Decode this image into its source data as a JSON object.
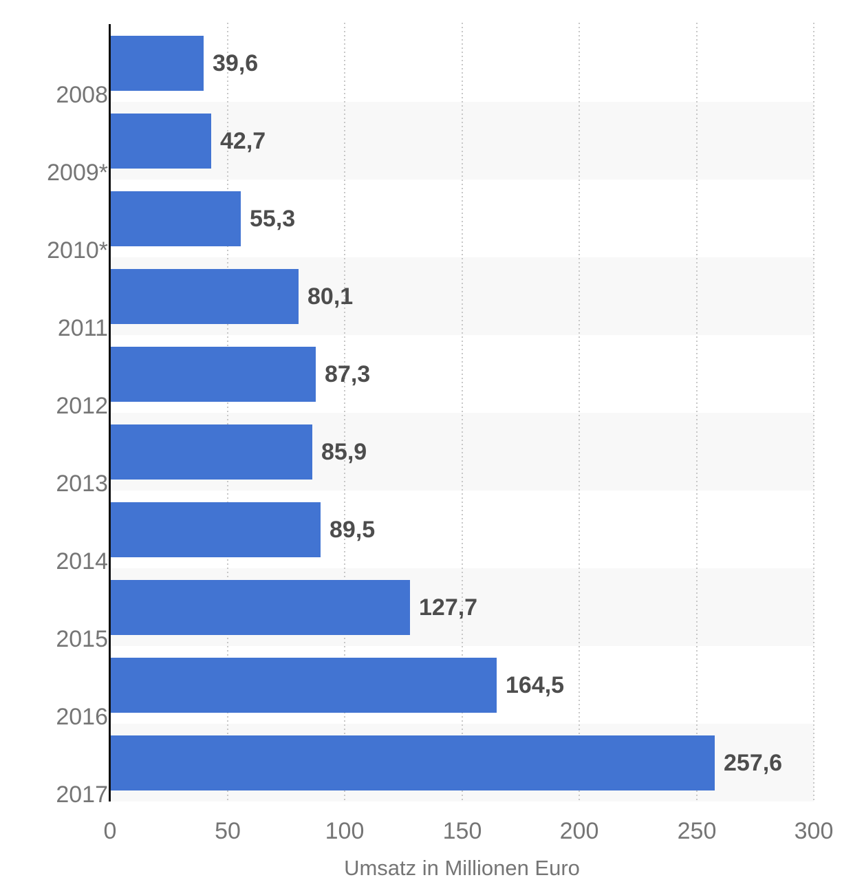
{
  "chart_data": {
    "type": "bar",
    "orientation": "horizontal",
    "title": "",
    "xlabel": "Umsatz in Millionen Euro",
    "ylabel": "",
    "categories": [
      "2008",
      "2009*",
      "2010*",
      "2011",
      "2012",
      "2013",
      "2014",
      "2015",
      "2016",
      "2017"
    ],
    "values": [
      39.6,
      42.7,
      55.3,
      80.1,
      87.3,
      85.9,
      89.5,
      127.7,
      164.5,
      257.6
    ],
    "value_labels": [
      "39,6",
      "42,7",
      "55,3",
      "80,1",
      "87,3",
      "85,9",
      "89,5",
      "127,7",
      "164,5",
      "257,6"
    ],
    "xlim": [
      0,
      300
    ],
    "x_ticks": [
      0,
      50,
      100,
      150,
      200,
      250,
      300
    ],
    "x_tick_labels": [
      "0",
      "50",
      "100",
      "150",
      "200",
      "250",
      "300"
    ],
    "grid": "vertical-dotted",
    "legend": "none",
    "row_shading": "alternate"
  },
  "colors": {
    "bar": "#4274d2",
    "band": "#f8f8f8",
    "gridline": "#c7c7c7",
    "axis_line": "#101010",
    "tick_label": "#757575",
    "category_label": "#757575",
    "value_label": "#4d4d4d",
    "axis_title": "#757575",
    "background": "#ffffff"
  }
}
